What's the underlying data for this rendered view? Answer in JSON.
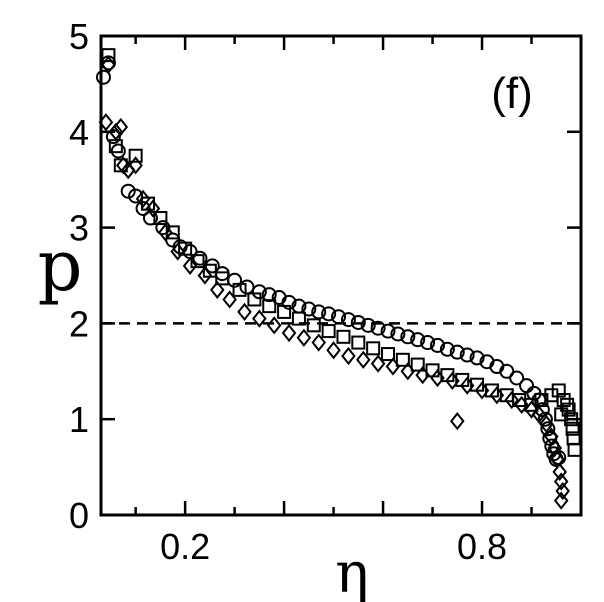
{
  "chart_data": {
    "type": "scatter",
    "xlabel": "η",
    "ylabel": "p",
    "annotation": "(f)",
    "xlim": [
      0.03,
      1.0
    ],
    "ylim": [
      0,
      5
    ],
    "x_ticks": [
      0.2,
      0.8
    ],
    "y_ticks": [
      0,
      1,
      2,
      3,
      4,
      5
    ],
    "grid": false,
    "reference_line": {
      "y": 2,
      "style": "dashed"
    },
    "series": [
      {
        "marker": "circle",
        "points": [
          [
            0.035,
            4.57
          ],
          [
            0.045,
            4.72
          ],
          [
            0.055,
            3.95
          ],
          [
            0.065,
            3.8
          ],
          [
            0.085,
            3.38
          ],
          [
            0.1,
            3.33
          ],
          [
            0.115,
            3.2
          ],
          [
            0.13,
            3.1
          ],
          [
            0.155,
            3.0
          ],
          [
            0.175,
            2.87
          ],
          [
            0.19,
            2.8
          ],
          [
            0.21,
            2.75
          ],
          [
            0.23,
            2.68
          ],
          [
            0.255,
            2.6
          ],
          [
            0.275,
            2.52
          ],
          [
            0.3,
            2.45
          ],
          [
            0.325,
            2.38
          ],
          [
            0.35,
            2.33
          ],
          [
            0.37,
            2.3
          ],
          [
            0.39,
            2.27
          ],
          [
            0.41,
            2.22
          ],
          [
            0.43,
            2.18
          ],
          [
            0.45,
            2.15
          ],
          [
            0.47,
            2.12
          ],
          [
            0.49,
            2.1
          ],
          [
            0.51,
            2.07
          ],
          [
            0.53,
            2.04
          ],
          [
            0.55,
            2.01
          ],
          [
            0.57,
            1.98
          ],
          [
            0.59,
            1.95
          ],
          [
            0.61,
            1.92
          ],
          [
            0.63,
            1.89
          ],
          [
            0.65,
            1.86
          ],
          [
            0.67,
            1.83
          ],
          [
            0.69,
            1.8
          ],
          [
            0.71,
            1.77
          ],
          [
            0.73,
            1.73
          ],
          [
            0.75,
            1.7
          ],
          [
            0.77,
            1.67
          ],
          [
            0.79,
            1.64
          ],
          [
            0.81,
            1.6
          ],
          [
            0.83,
            1.55
          ],
          [
            0.85,
            1.5
          ],
          [
            0.87,
            1.43
          ],
          [
            0.89,
            1.35
          ],
          [
            0.905,
            1.27
          ],
          [
            0.915,
            1.2
          ],
          [
            0.922,
            1.1
          ],
          [
            0.928,
            1.0
          ],
          [
            0.933,
            0.9
          ],
          [
            0.937,
            0.8
          ],
          [
            0.941,
            0.72
          ],
          [
            0.945,
            0.64
          ],
          [
            0.95,
            0.58
          ],
          [
            0.955,
            0.6
          ]
        ]
      },
      {
        "marker": "square",
        "points": [
          [
            0.045,
            4.8
          ],
          [
            0.06,
            3.85
          ],
          [
            0.07,
            3.65
          ],
          [
            0.1,
            3.75
          ],
          [
            0.125,
            3.25
          ],
          [
            0.15,
            3.1
          ],
          [
            0.175,
            2.95
          ],
          [
            0.2,
            2.78
          ],
          [
            0.225,
            2.65
          ],
          [
            0.25,
            2.55
          ],
          [
            0.275,
            2.47
          ],
          [
            0.31,
            2.35
          ],
          [
            0.34,
            2.25
          ],
          [
            0.37,
            2.18
          ],
          [
            0.4,
            2.12
          ],
          [
            0.43,
            2.05
          ],
          [
            0.46,
            1.98
          ],
          [
            0.49,
            1.92
          ],
          [
            0.52,
            1.86
          ],
          [
            0.55,
            1.8
          ],
          [
            0.58,
            1.74
          ],
          [
            0.61,
            1.68
          ],
          [
            0.64,
            1.62
          ],
          [
            0.67,
            1.57
          ],
          [
            0.7,
            1.51
          ],
          [
            0.73,
            1.46
          ],
          [
            0.76,
            1.41
          ],
          [
            0.79,
            1.36
          ],
          [
            0.82,
            1.3
          ],
          [
            0.85,
            1.25
          ],
          [
            0.875,
            1.2
          ],
          [
            0.9,
            1.15
          ],
          [
            0.92,
            1.2
          ],
          [
            0.94,
            1.25
          ],
          [
            0.955,
            1.3
          ],
          [
            0.965,
            1.2
          ],
          [
            0.975,
            1.1
          ],
          [
            0.98,
            1.0
          ],
          [
            0.983,
            0.9
          ],
          [
            0.985,
            0.8
          ],
          [
            0.987,
            0.68
          ],
          [
            0.972,
            1.15
          ],
          [
            0.96,
            1.05
          ]
        ]
      },
      {
        "marker": "diamond",
        "points": [
          [
            0.045,
            4.7
          ],
          [
            0.04,
            4.1
          ],
          [
            0.06,
            4.0
          ],
          [
            0.07,
            4.05
          ],
          [
            0.075,
            3.65
          ],
          [
            0.085,
            3.6
          ],
          [
            0.1,
            3.65
          ],
          [
            0.115,
            3.3
          ],
          [
            0.135,
            3.2
          ],
          [
            0.16,
            2.95
          ],
          [
            0.185,
            2.75
          ],
          [
            0.21,
            2.6
          ],
          [
            0.24,
            2.5
          ],
          [
            0.265,
            2.35
          ],
          [
            0.29,
            2.25
          ],
          [
            0.32,
            2.12
          ],
          [
            0.35,
            2.05
          ],
          [
            0.38,
            1.98
          ],
          [
            0.41,
            1.9
          ],
          [
            0.44,
            1.85
          ],
          [
            0.47,
            1.8
          ],
          [
            0.5,
            1.72
          ],
          [
            0.53,
            1.66
          ],
          [
            0.56,
            1.62
          ],
          [
            0.59,
            1.58
          ],
          [
            0.62,
            1.55
          ],
          [
            0.65,
            1.5
          ],
          [
            0.68,
            1.46
          ],
          [
            0.71,
            1.43
          ],
          [
            0.74,
            1.4
          ],
          [
            0.77,
            1.35
          ],
          [
            0.8,
            1.3
          ],
          [
            0.83,
            1.25
          ],
          [
            0.86,
            1.2
          ],
          [
            0.88,
            1.15
          ],
          [
            0.9,
            1.1
          ],
          [
            0.915,
            1.05
          ],
          [
            0.93,
            0.95
          ],
          [
            0.94,
            0.82
          ],
          [
            0.947,
            0.7
          ],
          [
            0.952,
            0.58
          ],
          [
            0.957,
            0.45
          ],
          [
            0.96,
            0.35
          ],
          [
            0.963,
            0.25
          ],
          [
            0.96,
            0.15
          ],
          [
            0.75,
            0.98
          ]
        ]
      }
    ]
  }
}
